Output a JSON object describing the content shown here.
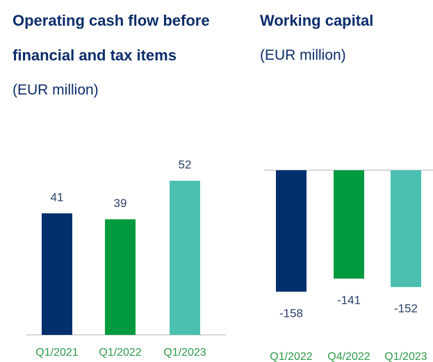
{
  "chart_data": [
    {
      "type": "bar",
      "title": "Operating cash flow before financial and tax items",
      "subtitle": "(EUR million)",
      "categories": [
        "Q1/2021",
        "Q1/2022",
        "Q1/2023"
      ],
      "values": [
        41,
        39,
        52
      ],
      "colors": [
        "#002f6c",
        "#009a3e",
        "#4bbfb0"
      ],
      "ylim": [
        0,
        60
      ]
    },
    {
      "type": "bar",
      "title": "Working capital",
      "subtitle": "(EUR million)",
      "categories": [
        "Q1/2022",
        "Q4/2022",
        "Q1/2023"
      ],
      "values": [
        -158,
        -141,
        -152
      ],
      "colors": [
        "#002f6c",
        "#009a3e",
        "#4bbfb0"
      ],
      "ylim": [
        -160,
        0
      ]
    }
  ]
}
